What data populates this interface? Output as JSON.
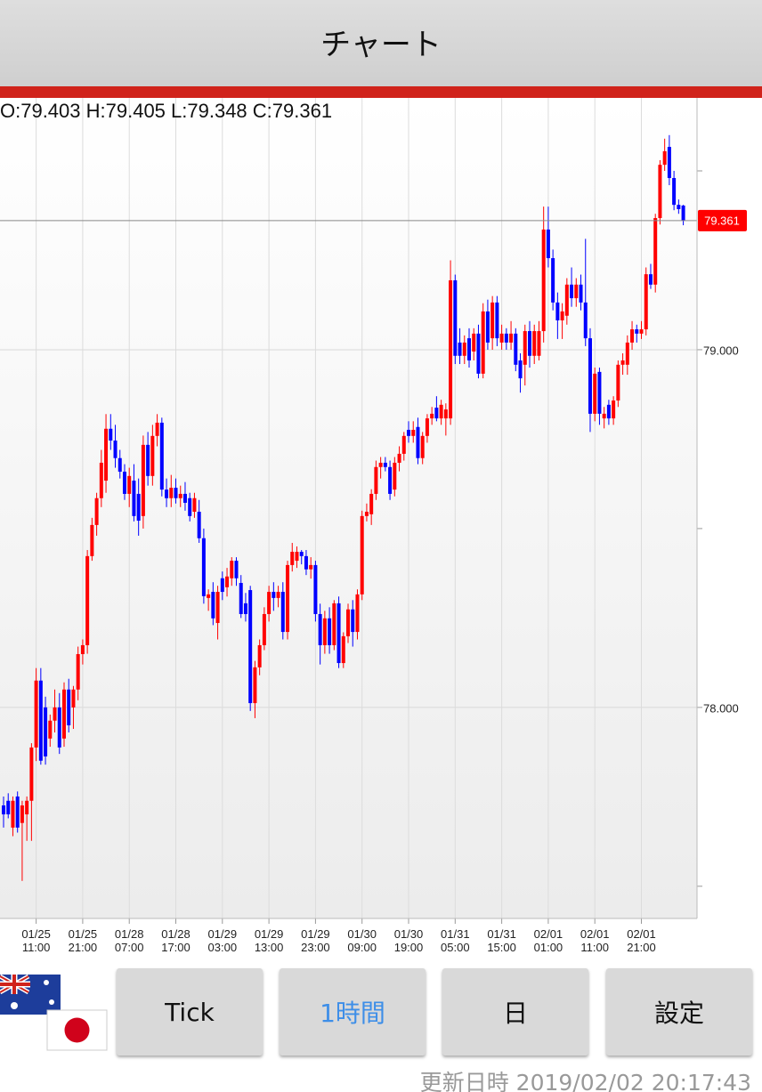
{
  "header": {
    "title": "チャート"
  },
  "buttons": {
    "items": [
      "Tick",
      "1時間",
      "日",
      "設定"
    ],
    "selected": "1時間",
    "selected_color": "#3d8ee8"
  },
  "footer": {
    "label": "更新日時",
    "timestamp": "2019/02/02 20:17:43"
  },
  "chart_data": {
    "type": "candlestick",
    "ohlc_text": "O:79.403 H:79.405 L:79.348 C:79.361",
    "up_color": "#ff0000",
    "down_color": "#0000ff",
    "ylim": [
      77.41,
      79.704
    ],
    "yticks": [
      {
        "value": 78,
        "label": "78.000"
      },
      {
        "value": 79,
        "label": "79.000"
      }
    ],
    "yminorticks": [
      77.5,
      78.5,
      79.5
    ],
    "grid": true,
    "last_price": {
      "value": 79.361,
      "label": "79.361",
      "color": "#ff0000"
    },
    "categories": [
      null,
      null,
      null,
      null,
      null,
      null,
      null,
      "01/25\n11:00",
      null,
      null,
      null,
      null,
      null,
      null,
      null,
      null,
      null,
      "01/25\n21:00",
      null,
      null,
      null,
      null,
      null,
      null,
      null,
      null,
      null,
      "01/28\n07:00",
      null,
      null,
      null,
      null,
      null,
      null,
      null,
      null,
      null,
      "01/28\n17:00",
      null,
      null,
      null,
      null,
      null,
      null,
      null,
      null,
      null,
      "01/29\n03:00",
      null,
      null,
      null,
      null,
      null,
      null,
      null,
      null,
      null,
      "01/29\n13:00",
      null,
      null,
      null,
      null,
      null,
      null,
      null,
      null,
      null,
      "01/29\n23:00",
      null,
      null,
      null,
      null,
      null,
      null,
      null,
      null,
      null,
      "01/30\n09:00",
      null,
      null,
      null,
      null,
      null,
      null,
      null,
      null,
      null,
      "01/30\n19:00",
      null,
      null,
      null,
      null,
      null,
      null,
      null,
      null,
      null,
      "01/31\n05:00",
      null,
      null,
      null,
      null,
      null,
      null,
      null,
      null,
      null,
      "01/31\n15:00",
      null,
      null,
      null,
      null,
      null,
      null,
      null,
      null,
      null,
      "02/01\n01:00",
      null,
      null,
      null,
      null,
      null,
      null,
      null,
      null,
      null,
      "02/01\n11:00",
      null,
      null,
      null,
      null,
      null,
      null,
      null,
      null,
      null,
      "02/01\n21:00",
      null,
      null,
      null,
      null,
      null,
      null,
      null,
      null,
      null
    ],
    "open": [
      77.726,
      77.739,
      77.664,
      77.751,
      77.677,
      77.701,
      77.739,
      77.888,
      78.075,
      78.0,
      77.913,
      77.963,
      78.0,
      77.913,
      78.05,
      78.0,
      78.05,
      78.149,
      78.174,
      78.423,
      78.51,
      78.585,
      78.634,
      78.779,
      78.746,
      78.697,
      78.659,
      78.597,
      78.634,
      78.597,
      78.535,
      78.734,
      78.647,
      78.759,
      78.796,
      78.609,
      78.585,
      78.614,
      78.585,
      78.597,
      78.585,
      78.547,
      78.547,
      78.473,
      78.306,
      78.323,
      78.236,
      78.361,
      78.336,
      78.361,
      78.41,
      78.348,
      78.291,
      78.328,
      78.012,
      78.112,
      78.174,
      78.261,
      78.323,
      78.306,
      78.323,
      78.211,
      78.398,
      78.41,
      78.435,
      78.423,
      78.386,
      78.398,
      78.261,
      78.174,
      78.249,
      78.174,
      78.291,
      78.124,
      78.199,
      78.274,
      78.211,
      78.316,
      78.535,
      78.54,
      78.597,
      78.672,
      78.684,
      78.672,
      78.609,
      78.684,
      78.709,
      78.776,
      78.759,
      78.784,
      78.697,
      78.759,
      78.808,
      78.838,
      78.808,
      78.808,
      78.808,
      79.194,
      79.02,
      78.983,
      79.032,
      78.995,
      79.045,
      78.933,
      79.107,
      79.032,
      79.132,
      79.02,
      79.045,
      79.02,
      79.045,
      78.97,
      78.958,
      79.052,
      78.983,
      78.983,
      79.052,
      79.336,
      79.256,
      79.132,
      79.082,
      79.095,
      79.182,
      79.144,
      79.182,
      79.132,
      79.032,
      78.821,
      78.938,
      78.808,
      78.846,
      78.808,
      78.858,
      78.958,
      78.958,
      79.02,
      79.057,
      79.045,
      79.057,
      79.211,
      79.182,
      79.368,
      79.517,
      79.567,
      79.48,
      79.405,
      79.403
    ],
    "high": [
      77.751,
      77.76,
      77.751,
      77.765,
      77.739,
      77.751,
      77.9,
      78.11,
      78.11,
      78.03,
      77.98,
      78.05,
      78.04,
      78.07,
      78.08,
      78.06,
      78.17,
      78.19,
      78.44,
      78.53,
      78.6,
      78.72,
      78.82,
      78.82,
      78.79,
      78.72,
      78.68,
      78.67,
      78.68,
      78.64,
      78.76,
      78.77,
      78.79,
      78.82,
      78.81,
      78.64,
      78.65,
      78.64,
      78.62,
      78.63,
      78.6,
      78.6,
      78.58,
      78.5,
      78.33,
      78.35,
      78.34,
      78.38,
      78.39,
      78.42,
      78.42,
      78.37,
      78.32,
      78.34,
      78.13,
      78.19,
      78.28,
      78.34,
      78.35,
      78.34,
      78.35,
      78.41,
      78.46,
      78.45,
      78.44,
      78.44,
      78.42,
      78.41,
      78.29,
      78.27,
      78.28,
      78.3,
      78.31,
      78.21,
      78.29,
      78.3,
      78.33,
      78.55,
      78.57,
      78.61,
      78.69,
      78.7,
      78.7,
      78.69,
      78.7,
      78.73,
      78.77,
      78.8,
      78.8,
      78.81,
      78.77,
      78.82,
      78.84,
      78.87,
      78.86,
      78.85,
      79.25,
      79.21,
      79.06,
      79.04,
      79.06,
      79.06,
      79.07,
      79.13,
      79.14,
      79.15,
      79.15,
      79.07,
      79.06,
      79.08,
      79.06,
      78.99,
      79.07,
      79.08,
      79.07,
      79.08,
      79.4,
      79.4,
      79.28,
      79.16,
      79.13,
      79.2,
      79.23,
      79.2,
      79.21,
      79.31,
      79.06,
      78.95,
      78.95,
      78.84,
      78.86,
      78.87,
      78.97,
      78.99,
      79.04,
      79.08,
      79.07,
      79.08,
      79.23,
      79.24,
      79.38,
      79.53,
      79.59,
      79.6,
      79.5,
      79.42,
      79.405
    ],
    "low": [
      77.664,
      77.69,
      77.64,
      77.65,
      77.515,
      77.627,
      77.627,
      77.85,
      77.84,
      77.84,
      77.89,
      77.93,
      77.87,
      77.89,
      77.93,
      77.94,
      78.02,
      78.12,
      78.15,
      78.41,
      78.48,
      78.56,
      78.6,
      78.72,
      78.67,
      78.64,
      78.58,
      78.56,
      78.52,
      78.48,
      78.5,
      78.62,
      78.62,
      78.73,
      78.59,
      78.56,
      78.56,
      78.57,
      78.56,
      78.55,
      78.52,
      78.53,
      78.46,
      78.29,
      78.27,
      78.23,
      78.19,
      78.3,
      78.31,
      78.34,
      78.34,
      78.25,
      78.24,
      77.99,
      77.97,
      78.09,
      78.16,
      78.24,
      78.27,
      78.28,
      78.19,
      78.19,
      78.38,
      78.39,
      78.4,
      78.37,
      78.36,
      78.24,
      78.12,
      78.15,
      78.15,
      78.16,
      78.11,
      78.11,
      78.18,
      78.17,
      78.19,
      78.3,
      78.52,
      78.51,
      78.58,
      78.64,
      78.66,
      78.58,
      78.59,
      78.66,
      78.69,
      78.74,
      78.74,
      78.68,
      78.68,
      78.74,
      78.79,
      78.8,
      78.79,
      78.76,
      78.79,
      78.96,
      78.96,
      78.96,
      78.95,
      78.97,
      78.92,
      78.92,
      79.0,
      79.0,
      79.01,
      79.0,
      79.0,
      79.0,
      78.94,
      78.88,
      78.9,
      78.95,
      78.96,
      78.97,
      79.02,
      79.23,
      79.11,
      79.03,
      79.03,
      79.07,
      79.12,
      79.12,
      79.11,
      79.01,
      78.77,
      78.8,
      78.79,
      78.78,
      78.79,
      78.79,
      78.84,
      78.93,
      78.93,
      79.0,
      79.02,
      79.03,
      79.04,
      79.17,
      79.16,
      79.35,
      79.5,
      79.46,
      79.39,
      79.38,
      79.348
    ],
    "close": [
      77.701,
      77.701,
      77.739,
      77.664,
      77.726,
      77.739,
      77.888,
      78.075,
      77.851,
      77.863,
      77.963,
      78.0,
      77.888,
      78.05,
      77.95,
      78.05,
      78.149,
      78.174,
      78.423,
      78.51,
      78.585,
      78.684,
      78.779,
      78.746,
      78.697,
      78.659,
      78.597,
      78.647,
      78.535,
      78.522,
      78.734,
      78.647,
      78.759,
      78.796,
      78.609,
      78.585,
      78.614,
      78.585,
      78.597,
      78.572,
      78.535,
      78.585,
      78.473,
      78.311,
      78.316,
      78.249,
      78.323,
      78.323,
      78.366,
      78.41,
      78.361,
      78.261,
      78.261,
      78.012,
      78.112,
      78.174,
      78.261,
      78.323,
      78.306,
      78.323,
      78.211,
      78.398,
      78.435,
      78.435,
      78.423,
      78.386,
      78.398,
      78.261,
      78.174,
      78.249,
      78.174,
      78.291,
      78.124,
      78.199,
      78.274,
      78.211,
      78.316,
      78.535,
      78.547,
      78.597,
      78.672,
      78.684,
      78.672,
      78.597,
      78.684,
      78.709,
      78.759,
      78.759,
      78.776,
      78.697,
      78.759,
      78.808,
      78.821,
      78.808,
      78.846,
      78.833,
      79.194,
      78.983,
      78.983,
      79.02,
      78.97,
      79.045,
      78.933,
      79.107,
      79.02,
      79.132,
      79.032,
      79.045,
      79.02,
      79.045,
      78.958,
      78.92,
      79.052,
      78.983,
      79.052,
      79.052,
      79.336,
      79.256,
      79.132,
      79.082,
      79.107,
      79.182,
      79.144,
      79.182,
      79.132,
      79.032,
      78.821,
      78.933,
      78.821,
      78.821,
      78.808,
      78.858,
      78.958,
      78.97,
      79.02,
      79.057,
      79.045,
      79.057,
      79.211,
      79.182,
      79.368,
      79.517,
      79.555,
      79.48,
      79.405,
      79.393,
      79.361
    ]
  }
}
